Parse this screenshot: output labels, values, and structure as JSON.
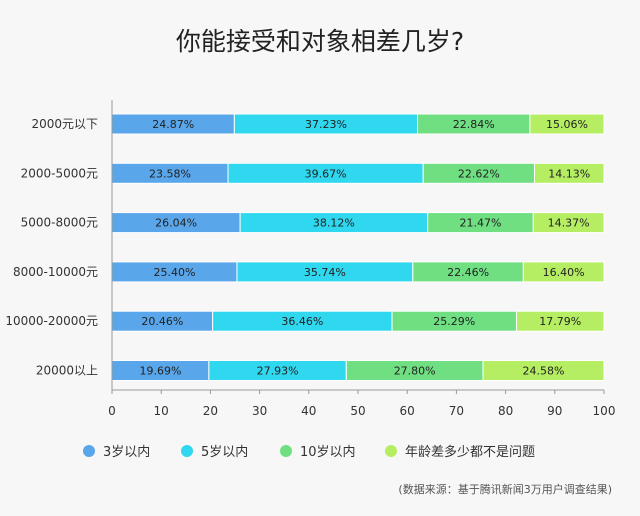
{
  "chart_data": {
    "type": "bar",
    "orientation": "horizontal",
    "stacked": true,
    "title": "你能接受和对象相差几岁?",
    "categories": [
      "2000元以下",
      "2000-5000元",
      "5000-8000元",
      "8000-10000元",
      "10000-20000元",
      "20000以上"
    ],
    "series": [
      {
        "name": "3岁以内",
        "color": "#5aa6ea",
        "values": [
          24.87,
          23.58,
          26.04,
          25.4,
          20.46,
          19.69
        ],
        "labels": [
          "24.87%",
          "23.58%",
          "26.04%",
          "25.40%",
          "20.46%",
          "19.69%"
        ]
      },
      {
        "name": "5岁以内",
        "color": "#2fd7ef",
        "values": [
          37.23,
          39.67,
          38.12,
          35.74,
          36.46,
          27.93
        ],
        "labels": [
          "37.23%",
          "39.67%",
          "38.12%",
          "35.74%",
          "36.46%",
          "27.93%"
        ]
      },
      {
        "name": "10岁以内",
        "color": "#6fdf82",
        "values": [
          22.84,
          22.62,
          21.47,
          22.46,
          25.29,
          27.8
        ],
        "labels": [
          "22.84%",
          "22.62%",
          "21.47%",
          "22.46%",
          "25.29%",
          "27.80%"
        ]
      },
      {
        "name": "年龄差多少都不是问题",
        "color": "#b6ee63",
        "values": [
          15.06,
          14.13,
          14.37,
          16.4,
          17.79,
          24.58
        ],
        "labels": [
          "15.06%",
          "14.13%",
          "14.37%",
          "16.40%",
          "17.79%",
          "24.58%"
        ]
      }
    ],
    "xlim": [
      0,
      100
    ],
    "xticks": [
      "0",
      "10",
      "20",
      "30",
      "40",
      "50",
      "60",
      "70",
      "80",
      "90",
      "100"
    ],
    "grid": false,
    "legend_position": "bottom"
  },
  "source_note": "(数据来源：基于腾讯新闻3万用户调查结果)"
}
